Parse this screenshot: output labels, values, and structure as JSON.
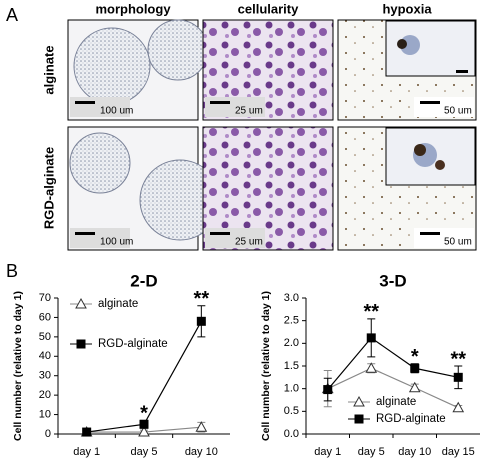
{
  "figure_a": {
    "label": "A",
    "columns": [
      "morphology",
      "cellularity",
      "hypoxia"
    ],
    "rows": [
      "alginate",
      "RGD-alginate"
    ],
    "scale_bars": [
      [
        "100 um",
        "25 um",
        "50 um"
      ],
      [
        "100 um",
        "25 um",
        "50 um"
      ]
    ]
  },
  "figure_b": {
    "label": "B"
  },
  "chart_data": [
    {
      "type": "line",
      "title": "2-D",
      "y_label": "Cell number (relative to day 1)",
      "categories": [
        "day 1",
        "day 5",
        "day 10"
      ],
      "series": [
        {
          "name": "alginate",
          "color": "#888888",
          "marker": "triangle-open",
          "values": [
            1,
            1,
            3.5
          ],
          "errors": [
            0.5,
            1,
            2.5
          ]
        },
        {
          "name": "RGD-alginate",
          "color": "#000000",
          "marker": "square",
          "values": [
            1,
            5,
            58
          ],
          "errors": [
            1,
            2,
            8
          ]
        }
      ],
      "annotations": [
        null,
        "*",
        "**"
      ],
      "ylim": [
        0,
        70
      ],
      "yticks": [
        0,
        10,
        20,
        30,
        40,
        50,
        60,
        70
      ],
      "legend_position": "upper left"
    },
    {
      "type": "line",
      "title": "3-D",
      "y_label": "Cell number (relative to day 1)",
      "categories": [
        "day 1",
        "day 5",
        "day 10",
        "day 15"
      ],
      "series": [
        {
          "name": "alginate",
          "color": "#888888",
          "marker": "triangle-open",
          "values": [
            1.0,
            1.45,
            1.02,
            0.58
          ],
          "errors": [
            0.4,
            0.1,
            0.08,
            0.05
          ]
        },
        {
          "name": "RGD-alginate",
          "color": "#000000",
          "marker": "square",
          "values": [
            0.98,
            2.12,
            1.45,
            1.25
          ],
          "errors": [
            0.25,
            0.42,
            0.1,
            0.25
          ]
        }
      ],
      "annotations": [
        null,
        "**",
        "*",
        "**"
      ],
      "ylim": [
        0,
        3
      ],
      "yticks": [
        {
          "value": 0,
          "label": "0.0"
        },
        0.5,
        {
          "value": 1,
          "label": "1.0"
        },
        1.5,
        {
          "value": 2,
          "label": "2.0"
        },
        2.5,
        {
          "value": 3,
          "label": "3.0"
        }
      ],
      "legend_position": "lower center"
    }
  ]
}
